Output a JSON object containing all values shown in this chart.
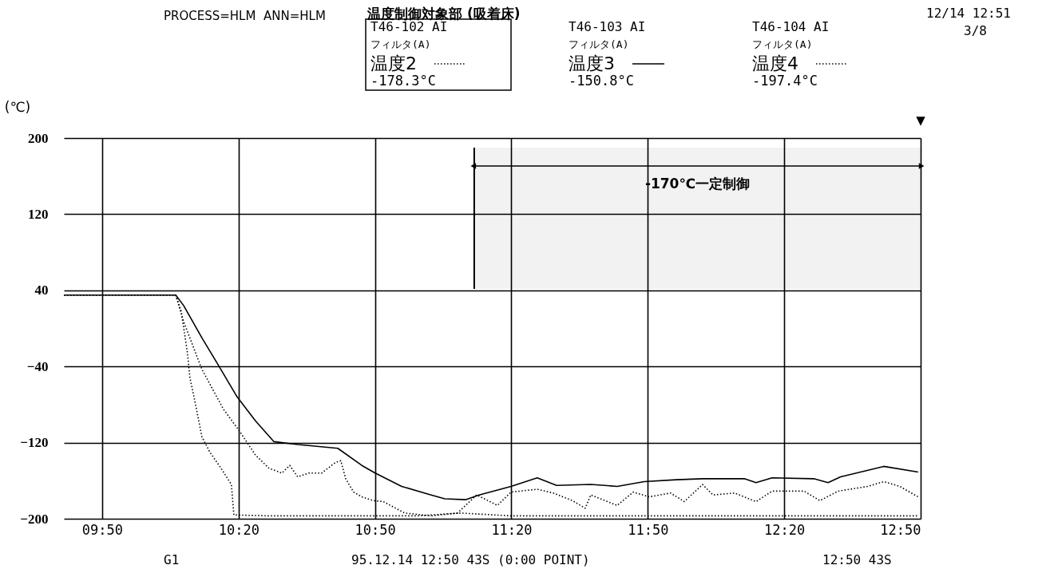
{
  "chart_data": {
    "type": "line",
    "ylabel": "(℃)",
    "xlim": [
      9.693,
      12.8333
    ],
    "xticks": [
      {
        "value": 9.8333,
        "label": "09:50"
      },
      {
        "value": 10.3333,
        "label": "10:20"
      },
      {
        "value": 10.8333,
        "label": "10:50"
      },
      {
        "value": 11.3333,
        "label": "11:20"
      },
      {
        "value": 11.8333,
        "label": "11:50"
      },
      {
        "value": 12.3333,
        "label": "12:20"
      },
      {
        "value": 12.8333,
        "label": "12:50"
      }
    ],
    "legend": "top",
    "ylim": [
      -200,
      200
    ],
    "yticks": [
      200,
      120,
      40,
      -40,
      -120,
      -200
    ],
    "grid": true,
    "series": [
      {
        "name": "温度2",
        "color": "#000000",
        "line_style": "dotted",
        "x": [
          9.693,
          10.103,
          10.132,
          10.199,
          10.278,
          10.337,
          10.395,
          10.445,
          10.492,
          10.521,
          10.55,
          10.591,
          10.638,
          10.688,
          10.708,
          10.726,
          10.755,
          10.785,
          10.828,
          10.864,
          10.942,
          11.039,
          11.136,
          11.206,
          11.282,
          11.332,
          11.428,
          11.487,
          11.557,
          11.604,
          11.624,
          11.721,
          11.78,
          11.838,
          11.917,
          11.967,
          12.034,
          12.072,
          12.151,
          12.23,
          12.289,
          12.406,
          12.464,
          12.531,
          12.64,
          12.698,
          12.757,
          12.824
        ],
        "values": [
          35,
          35,
          7,
          -43,
          -85,
          -108,
          -133,
          -147,
          -152,
          -144,
          -156,
          -152,
          -152,
          -141,
          -139,
          -158,
          -172,
          -177,
          -181,
          -182,
          -194,
          -197,
          -194,
          -175,
          -186,
          -172,
          -169,
          -173,
          -181,
          -189,
          -175,
          -186,
          -172,
          -177,
          -173,
          -182,
          -164,
          -175,
          -173,
          -182,
          -171,
          -171,
          -181,
          -171,
          -166,
          -161,
          -166,
          -177
        ]
      },
      {
        "name": "温度3",
        "color": "#000000",
        "line_style": "solid",
        "x": [
          9.693,
          10.103,
          10.132,
          10.199,
          10.258,
          10.328,
          10.395,
          10.463,
          10.55,
          10.697,
          10.785,
          10.834,
          10.931,
          11.039,
          11.089,
          11.165,
          11.215,
          11.332,
          11.428,
          11.499,
          11.624,
          11.721,
          11.82,
          11.938,
          12.034,
          12.189,
          12.23,
          12.289,
          12.444,
          12.494,
          12.54,
          12.698,
          12.824
        ],
        "values": [
          35,
          35,
          24,
          -10,
          -38,
          -72,
          -97,
          -119,
          -122,
          -126,
          -144,
          -152,
          -166,
          -175,
          -179,
          -180,
          -175,
          -166,
          -157,
          -165,
          -164,
          -166,
          -161,
          -159,
          -158,
          -158,
          -162,
          -157,
          -158,
          -162,
          -156,
          -145,
          -151
        ]
      },
      {
        "name": "温度4",
        "color": "#000000",
        "line_style": "dotted",
        "x": [
          9.693,
          10.103,
          10.123,
          10.146,
          10.155,
          10.17,
          10.199,
          10.228,
          10.269,
          10.307,
          10.316,
          10.445,
          10.747,
          10.989,
          11.147,
          11.332,
          11.683,
          12.034,
          12.356,
          12.824
        ],
        "values": [
          35,
          35,
          18,
          -26,
          -52,
          -72,
          -114,
          -130,
          -147,
          -164,
          -196,
          -197,
          -197,
          -197,
          -194,
          -197,
          -197,
          -197,
          -197,
          -197
        ]
      }
    ],
    "ref_lines": [
      {
        "axis": "x",
        "value": 11.197
      }
    ],
    "bands": [
      {
        "axis": "x",
        "from": 11.197,
        "to": 12.8333,
        "label": "-170℃一定制御"
      }
    ],
    "annotations": [
      "PROCESS=HLM",
      "ANN=HLM",
      "温度制御対象部 (吸着床)",
      "T46-102 AI",
      "フィルタ(A)",
      "-178.3°C",
      "T46-103 AI",
      "フィルタ(A)",
      "-150.8°C",
      "T46-104 AI",
      "フィルタ(A)",
      "-197.4°C",
      "12/14 12:51",
      "3/8",
      "▼",
      "G1",
      "95.12.14 12:50 43S (0:00 POINT)",
      "12:50 43S"
    ]
  }
}
